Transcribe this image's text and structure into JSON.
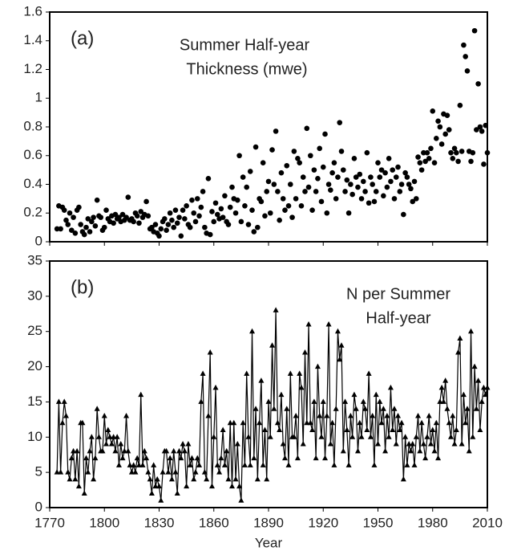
{
  "chart_data": [
    {
      "type": "scatter",
      "panel_label": "(a)",
      "title_lines": [
        "Summer Half-year",
        "Thickness (mwe)"
      ],
      "color": "#000000",
      "x": [
        1774,
        1775,
        1776,
        1777,
        1778,
        1779,
        1780,
        1781,
        1782,
        1783,
        1784,
        1785,
        1786,
        1787,
        1788,
        1789,
        1790,
        1791,
        1792,
        1793,
        1794,
        1795,
        1796,
        1797,
        1798,
        1799,
        1800,
        1801,
        1802,
        1803,
        1804,
        1805,
        1806,
        1807,
        1808,
        1809,
        1810,
        1811,
        1812,
        1813,
        1814,
        1815,
        1816,
        1817,
        1818,
        1819,
        1820,
        1821,
        1822,
        1823,
        1824,
        1825,
        1826,
        1827,
        1828,
        1829,
        1830,
        1831,
        1832,
        1833,
        1834,
        1835,
        1836,
        1837,
        1838,
        1839,
        1840,
        1841,
        1842,
        1843,
        1844,
        1845,
        1846,
        1847,
        1848,
        1849,
        1850,
        1851,
        1852,
        1853,
        1854,
        1855,
        1856,
        1857,
        1858,
        1859,
        1860,
        1861,
        1862,
        1863,
        1864,
        1865,
        1866,
        1867,
        1868,
        1869,
        1870,
        1871,
        1872,
        1873,
        1874,
        1875,
        1876,
        1877,
        1878,
        1879,
        1880,
        1881,
        1882,
        1883,
        1884,
        1885,
        1886,
        1887,
        1888,
        1889,
        1890,
        1891,
        1892,
        1893,
        1894,
        1895,
        1896,
        1897,
        1898,
        1899,
        1900,
        1901,
        1902,
        1903,
        1904,
        1905,
        1906,
        1907,
        1908,
        1909,
        1910,
        1911,
        1912,
        1913,
        1914,
        1915,
        1916,
        1917,
        1918,
        1919,
        1920,
        1921,
        1922,
        1923,
        1924,
        1925,
        1926,
        1927,
        1928,
        1929,
        1930,
        1931,
        1932,
        1933,
        1934,
        1935,
        1936,
        1937,
        1938,
        1939,
        1940,
        1941,
        1942,
        1943,
        1944,
        1945,
        1946,
        1947,
        1948,
        1949,
        1950,
        1951,
        1952,
        1953,
        1954,
        1955,
        1956,
        1957,
        1958,
        1959,
        1960,
        1961,
        1962,
        1963,
        1964,
        1965,
        1966,
        1967,
        1968,
        1969,
        1970,
        1971,
        1972,
        1973,
        1974,
        1975,
        1976,
        1977,
        1978,
        1979,
        1980,
        1981,
        1982,
        1983,
        1984,
        1985,
        1986,
        1987,
        1988,
        1989,
        1990,
        1991,
        1992,
        1993,
        1994,
        1995,
        1996,
        1997,
        1998,
        1999,
        2000,
        2001,
        2002,
        2003,
        2004,
        2005,
        2006,
        2007,
        2008,
        2009,
        2010
      ],
      "values": [
        0.09,
        0.25,
        0.09,
        0.24,
        0.22,
        0.15,
        0.12,
        0.2,
        0.08,
        0.17,
        0.06,
        0.22,
        0.24,
        0.12,
        0.07,
        0.05,
        0.1,
        0.16,
        0.07,
        0.14,
        0.17,
        0.11,
        0.29,
        0.18,
        0.17,
        0.08,
        0.1,
        0.22,
        0.16,
        0.14,
        0.18,
        0.13,
        0.19,
        0.16,
        0.17,
        0.14,
        0.19,
        0.15,
        0.17,
        0.31,
        0.15,
        0.16,
        0.14,
        0.2,
        0.18,
        0.13,
        0.21,
        0.17,
        0.19,
        0.28,
        0.18,
        0.09,
        0.1,
        0.07,
        0.12,
        0.06,
        0.04,
        0.09,
        0.14,
        0.16,
        0.08,
        0.12,
        0.2,
        0.15,
        0.1,
        0.22,
        0.13,
        0.17,
        0.04,
        0.22,
        0.16,
        0.25,
        0.12,
        0.1,
        0.29,
        0.2,
        0.14,
        0.3,
        0.18,
        0.24,
        0.35,
        0.1,
        0.06,
        0.44,
        0.05,
        0.21,
        0.14,
        0.27,
        0.19,
        0.16,
        0.23,
        0.17,
        0.32,
        0.14,
        0.12,
        0.24,
        0.38,
        0.3,
        0.2,
        0.29,
        0.6,
        0.14,
        0.45,
        0.25,
        0.38,
        0.12,
        0.49,
        0.22,
        0.07,
        0.66,
        0.1,
        0.3,
        0.28,
        0.55,
        0.18,
        0.35,
        0.42,
        0.2,
        0.64,
        0.4,
        0.77,
        0.35,
        0.15,
        0.48,
        0.3,
        0.22,
        0.53,
        0.25,
        0.4,
        0.17,
        0.63,
        0.3,
        0.58,
        0.55,
        0.25,
        0.45,
        0.35,
        0.79,
        0.38,
        0.6,
        0.22,
        0.5,
        0.35,
        0.44,
        0.65,
        0.28,
        0.52,
        0.75,
        0.2,
        0.4,
        0.36,
        0.48,
        0.55,
        0.3,
        0.45,
        0.83,
        0.63,
        0.5,
        0.35,
        0.43,
        0.2,
        0.4,
        0.33,
        0.58,
        0.45,
        0.38,
        0.47,
        0.3,
        0.42,
        0.35,
        0.62,
        0.27,
        0.45,
        0.4,
        0.28,
        0.35,
        0.55,
        0.45,
        0.5,
        0.32,
        0.48,
        0.38,
        0.58,
        0.42,
        0.5,
        0.3,
        0.45,
        0.52,
        0.35,
        0.4,
        0.19,
        0.48,
        0.45,
        0.4,
        0.37,
        0.28,
        0.42,
        0.3,
        0.59,
        0.55,
        0.5,
        0.62,
        0.56,
        0.62,
        0.58,
        0.65,
        0.91,
        0.55,
        0.72,
        0.84,
        0.8,
        0.68,
        0.89,
        0.75,
        0.88,
        0.78,
        0.62,
        0.58,
        0.65,
        0.62,
        0.56,
        0.95,
        0.63,
        1.37,
        1.29,
        1.19,
        0.63,
        0.56,
        0.62,
        1.47,
        0.78,
        1.1,
        0.8,
        0.77,
        0.54,
        0.81,
        0.62
      ],
      "xlim": [
        1770,
        2010
      ],
      "xticks": [
        1770,
        1800,
        1830,
        1860,
        1890,
        1920,
        1950,
        1980,
        2010
      ],
      "ylim": [
        0,
        1.6
      ],
      "yticks": [
        0,
        0.2,
        0.4,
        0.6,
        0.8,
        1,
        1.2,
        1.4,
        1.6
      ]
    },
    {
      "type": "line",
      "marker": "triangle",
      "panel_label": "(b)",
      "title_lines": [
        "N per Summer",
        "Half-year"
      ],
      "color": "#000000",
      "xlabel": "Year",
      "x": [
        1774,
        1775,
        1776,
        1777,
        1778,
        1779,
        1780,
        1781,
        1782,
        1783,
        1784,
        1785,
        1786,
        1787,
        1788,
        1789,
        1790,
        1791,
        1792,
        1793,
        1794,
        1795,
        1796,
        1797,
        1798,
        1799,
        1800,
        1801,
        1802,
        1803,
        1804,
        1805,
        1806,
        1807,
        1808,
        1809,
        1810,
        1811,
        1812,
        1813,
        1814,
        1815,
        1816,
        1817,
        1818,
        1819,
        1820,
        1821,
        1822,
        1823,
        1824,
        1825,
        1826,
        1827,
        1828,
        1829,
        1830,
        1831,
        1832,
        1833,
        1834,
        1835,
        1836,
        1837,
        1838,
        1839,
        1840,
        1841,
        1842,
        1843,
        1844,
        1845,
        1846,
        1847,
        1848,
        1849,
        1850,
        1851,
        1852,
        1853,
        1854,
        1855,
        1856,
        1857,
        1858,
        1859,
        1860,
        1861,
        1862,
        1863,
        1864,
        1865,
        1866,
        1867,
        1868,
        1869,
        1870,
        1871,
        1872,
        1873,
        1874,
        1875,
        1876,
        1877,
        1878,
        1879,
        1880,
        1881,
        1882,
        1883,
        1884,
        1885,
        1886,
        1887,
        1888,
        1889,
        1890,
        1891,
        1892,
        1893,
        1894,
        1895,
        1896,
        1897,
        1898,
        1899,
        1900,
        1901,
        1902,
        1903,
        1904,
        1905,
        1906,
        1907,
        1908,
        1909,
        1910,
        1911,
        1912,
        1913,
        1914,
        1915,
        1916,
        1917,
        1918,
        1919,
        1920,
        1921,
        1922,
        1923,
        1924,
        1925,
        1926,
        1927,
        1928,
        1929,
        1930,
        1931,
        1932,
        1933,
        1934,
        1935,
        1936,
        1937,
        1938,
        1939,
        1940,
        1941,
        1942,
        1943,
        1944,
        1945,
        1946,
        1947,
        1948,
        1949,
        1950,
        1951,
        1952,
        1953,
        1954,
        1955,
        1956,
        1957,
        1958,
        1959,
        1960,
        1961,
        1962,
        1963,
        1964,
        1965,
        1966,
        1967,
        1968,
        1969,
        1970,
        1971,
        1972,
        1973,
        1974,
        1975,
        1976,
        1977,
        1978,
        1979,
        1980,
        1981,
        1982,
        1983,
        1984,
        1985,
        1986,
        1987,
        1988,
        1989,
        1990,
        1991,
        1992,
        1993,
        1994,
        1995,
        1996,
        1997,
        1998,
        1999,
        2000,
        2001,
        2002,
        2003,
        2004,
        2005,
        2006,
        2007,
        2008,
        2009,
        2010
      ],
      "values": [
        5,
        15,
        5,
        12,
        15,
        13,
        5,
        4,
        7,
        8,
        4,
        8,
        3,
        12,
        12,
        2,
        7,
        5,
        8,
        10,
        4,
        7,
        14,
        10,
        8,
        8,
        13,
        9,
        11,
        10,
        9,
        10,
        8,
        10,
        6,
        9,
        7,
        8,
        13,
        8,
        6,
        5,
        6,
        5,
        7,
        6,
        16,
        6,
        8,
        7,
        5,
        4,
        2,
        6,
        3,
        4,
        3,
        1,
        5,
        8,
        8,
        5,
        7,
        4,
        8,
        5,
        2,
        8,
        7,
        9,
        8,
        3,
        9,
        6,
        7,
        4,
        5,
        7,
        6,
        15,
        19,
        5,
        4,
        13,
        22,
        3,
        10,
        17,
        6,
        5,
        7,
        11,
        6,
        8,
        4,
        12,
        3,
        12,
        4,
        9,
        3,
        1,
        12,
        6,
        19,
        10,
        6,
        25,
        7,
        14,
        4,
        12,
        18,
        6,
        11,
        4,
        15,
        10,
        23,
        14,
        28,
        12,
        11,
        16,
        9,
        7,
        14,
        6,
        19,
        10,
        10,
        13,
        7,
        19,
        17,
        9,
        22,
        12,
        26,
        12,
        11,
        15,
        7,
        20,
        13,
        10,
        15,
        7,
        13,
        26,
        9,
        12,
        6,
        14,
        25,
        21,
        23,
        8,
        15,
        11,
        6,
        13,
        10,
        16,
        14,
        8,
        12,
        10,
        15,
        14,
        11,
        19,
        10,
        13,
        6,
        16,
        9,
        15,
        12,
        14,
        8,
        13,
        10,
        17,
        11,
        14,
        9,
        13,
        11,
        12,
        4,
        10,
        6,
        9,
        8,
        9,
        6,
        10,
        13,
        8,
        12,
        9,
        7,
        10,
        13,
        9,
        11,
        8,
        12,
        7,
        15,
        17,
        15,
        18,
        14,
        12,
        10,
        13,
        9,
        11,
        22,
        24,
        9,
        16,
        12,
        14,
        8,
        25,
        10,
        20,
        14,
        18,
        11,
        15,
        17,
        16,
        17
      ],
      "xlim": [
        1770,
        2010
      ],
      "xticks": [
        1770,
        1800,
        1830,
        1860,
        1890,
        1920,
        1950,
        1980,
        2010
      ],
      "ylim": [
        0,
        35
      ],
      "yticks": [
        0,
        5,
        10,
        15,
        20,
        25,
        30,
        35
      ]
    }
  ]
}
